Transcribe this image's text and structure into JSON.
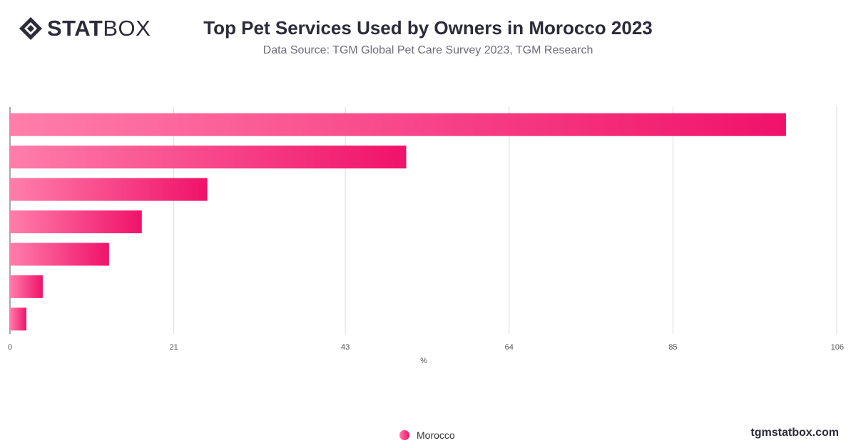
{
  "brand": {
    "logo_bold": "STAT",
    "logo_light": "BOX",
    "site": "tgmstatbox.com"
  },
  "colors": {
    "bar_start": "#ff7eaa",
    "bar_end": "#f0126a",
    "grid": "#dcdcdc",
    "axis": "#555555"
  },
  "chart_data": {
    "type": "bar",
    "orientation": "horizontal",
    "title": "Top Pet Services Used by Owners in Morocco 2023",
    "subtitle": "Data Source: TGM Global Pet Care Survey 2023, TGM Research",
    "xlabel": "%",
    "xlim": [
      0,
      106
    ],
    "xticks": [
      "0",
      "21",
      "43",
      "64",
      "85",
      "106"
    ],
    "grid": true,
    "legend_position": "bottom-center",
    "series": [
      {
        "name": "Morocco",
        "values": [
          99.5,
          50.8,
          25.3,
          16.9,
          12.7,
          4.2,
          2.1
        ]
      }
    ]
  }
}
